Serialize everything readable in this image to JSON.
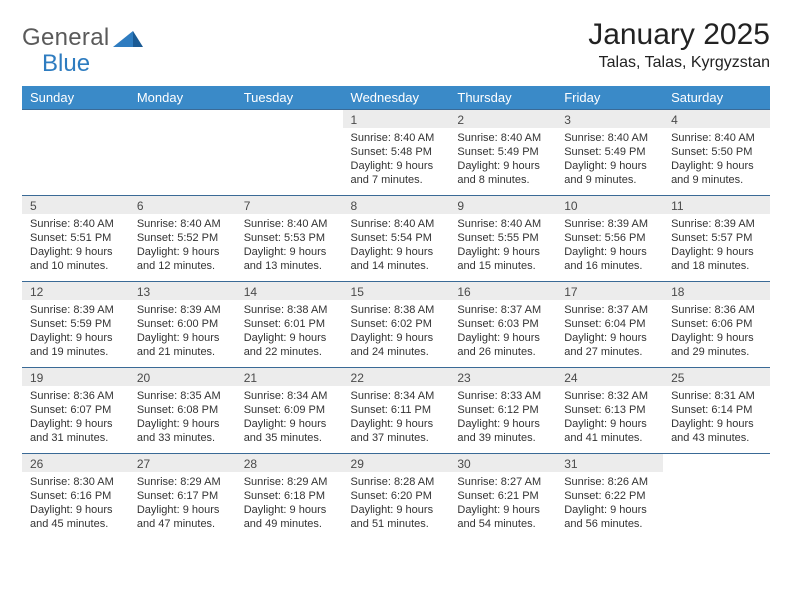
{
  "brand": {
    "word1": "General",
    "word2": "Blue",
    "word1_color": "#5a5a5a",
    "word2_color": "#2e7cc0"
  },
  "title": "January 2025",
  "location": "Talas, Talas, Kyrgyzstan",
  "header_bg": "#3a8ac8",
  "header_text_color": "#ffffff",
  "row_border_color": "#3a6a96",
  "daynum_bg": "#ececec",
  "background_color": "#ffffff",
  "weekdays": [
    "Sunday",
    "Monday",
    "Tuesday",
    "Wednesday",
    "Thursday",
    "Friday",
    "Saturday"
  ],
  "first_weekday_index": 3,
  "days": [
    {
      "n": 1,
      "sunrise": "8:40 AM",
      "sunset": "5:48 PM",
      "daylight": "9 hours and 7 minutes."
    },
    {
      "n": 2,
      "sunrise": "8:40 AM",
      "sunset": "5:49 PM",
      "daylight": "9 hours and 8 minutes."
    },
    {
      "n": 3,
      "sunrise": "8:40 AM",
      "sunset": "5:49 PM",
      "daylight": "9 hours and 9 minutes."
    },
    {
      "n": 4,
      "sunrise": "8:40 AM",
      "sunset": "5:50 PM",
      "daylight": "9 hours and 9 minutes."
    },
    {
      "n": 5,
      "sunrise": "8:40 AM",
      "sunset": "5:51 PM",
      "daylight": "9 hours and 10 minutes."
    },
    {
      "n": 6,
      "sunrise": "8:40 AM",
      "sunset": "5:52 PM",
      "daylight": "9 hours and 12 minutes."
    },
    {
      "n": 7,
      "sunrise": "8:40 AM",
      "sunset": "5:53 PM",
      "daylight": "9 hours and 13 minutes."
    },
    {
      "n": 8,
      "sunrise": "8:40 AM",
      "sunset": "5:54 PM",
      "daylight": "9 hours and 14 minutes."
    },
    {
      "n": 9,
      "sunrise": "8:40 AM",
      "sunset": "5:55 PM",
      "daylight": "9 hours and 15 minutes."
    },
    {
      "n": 10,
      "sunrise": "8:39 AM",
      "sunset": "5:56 PM",
      "daylight": "9 hours and 16 minutes."
    },
    {
      "n": 11,
      "sunrise": "8:39 AM",
      "sunset": "5:57 PM",
      "daylight": "9 hours and 18 minutes."
    },
    {
      "n": 12,
      "sunrise": "8:39 AM",
      "sunset": "5:59 PM",
      "daylight": "9 hours and 19 minutes."
    },
    {
      "n": 13,
      "sunrise": "8:39 AM",
      "sunset": "6:00 PM",
      "daylight": "9 hours and 21 minutes."
    },
    {
      "n": 14,
      "sunrise": "8:38 AM",
      "sunset": "6:01 PM",
      "daylight": "9 hours and 22 minutes."
    },
    {
      "n": 15,
      "sunrise": "8:38 AM",
      "sunset": "6:02 PM",
      "daylight": "9 hours and 24 minutes."
    },
    {
      "n": 16,
      "sunrise": "8:37 AM",
      "sunset": "6:03 PM",
      "daylight": "9 hours and 26 minutes."
    },
    {
      "n": 17,
      "sunrise": "8:37 AM",
      "sunset": "6:04 PM",
      "daylight": "9 hours and 27 minutes."
    },
    {
      "n": 18,
      "sunrise": "8:36 AM",
      "sunset": "6:06 PM",
      "daylight": "9 hours and 29 minutes."
    },
    {
      "n": 19,
      "sunrise": "8:36 AM",
      "sunset": "6:07 PM",
      "daylight": "9 hours and 31 minutes."
    },
    {
      "n": 20,
      "sunrise": "8:35 AM",
      "sunset": "6:08 PM",
      "daylight": "9 hours and 33 minutes."
    },
    {
      "n": 21,
      "sunrise": "8:34 AM",
      "sunset": "6:09 PM",
      "daylight": "9 hours and 35 minutes."
    },
    {
      "n": 22,
      "sunrise": "8:34 AM",
      "sunset": "6:11 PM",
      "daylight": "9 hours and 37 minutes."
    },
    {
      "n": 23,
      "sunrise": "8:33 AM",
      "sunset": "6:12 PM",
      "daylight": "9 hours and 39 minutes."
    },
    {
      "n": 24,
      "sunrise": "8:32 AM",
      "sunset": "6:13 PM",
      "daylight": "9 hours and 41 minutes."
    },
    {
      "n": 25,
      "sunrise": "8:31 AM",
      "sunset": "6:14 PM",
      "daylight": "9 hours and 43 minutes."
    },
    {
      "n": 26,
      "sunrise": "8:30 AM",
      "sunset": "6:16 PM",
      "daylight": "9 hours and 45 minutes."
    },
    {
      "n": 27,
      "sunrise": "8:29 AM",
      "sunset": "6:17 PM",
      "daylight": "9 hours and 47 minutes."
    },
    {
      "n": 28,
      "sunrise": "8:29 AM",
      "sunset": "6:18 PM",
      "daylight": "9 hours and 49 minutes."
    },
    {
      "n": 29,
      "sunrise": "8:28 AM",
      "sunset": "6:20 PM",
      "daylight": "9 hours and 51 minutes."
    },
    {
      "n": 30,
      "sunrise": "8:27 AM",
      "sunset": "6:21 PM",
      "daylight": "9 hours and 54 minutes."
    },
    {
      "n": 31,
      "sunrise": "8:26 AM",
      "sunset": "6:22 PM",
      "daylight": "9 hours and 56 minutes."
    }
  ],
  "labels": {
    "sunrise": "Sunrise:",
    "sunset": "Sunset:",
    "daylight": "Daylight:"
  },
  "fonts": {
    "title_pt": 30,
    "location_pt": 16,
    "weekday_pt": 13,
    "daynum_pt": 12,
    "body_pt": 11
  }
}
